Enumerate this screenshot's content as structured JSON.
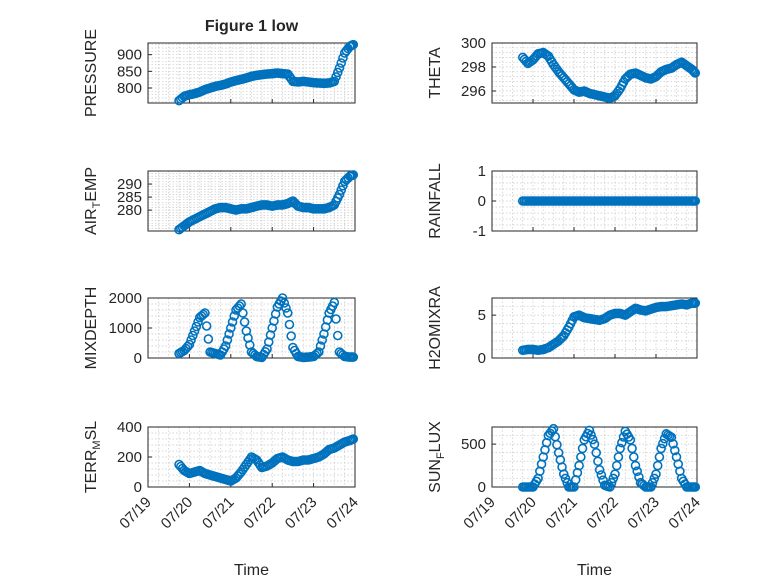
{
  "chart_data": [
    {
      "type": "scatter",
      "title": "Figure 1 low",
      "ylabel": "PRESSURE",
      "ylim": [
        755,
        935
      ],
      "yticks": [
        800,
        850,
        900
      ],
      "xlim": [
        "07/19",
        "07/24"
      ],
      "xticks": [],
      "grid": true,
      "series": [
        {
          "x": [
            "07/19 18:00",
            "07/19 21:00",
            "07/20 00:00",
            "07/20 03:00",
            "07/20 06:00",
            "07/20 09:00",
            "07/20 12:00",
            "07/20 15:00",
            "07/20 18:00",
            "07/20 21:00",
            "07/21 00:00",
            "07/21 03:00",
            "07/21 06:00",
            "07/21 09:00",
            "07/21 12:00",
            "07/21 15:00",
            "07/21 18:00",
            "07/21 21:00",
            "07/22 00:00",
            "07/22 03:00",
            "07/22 06:00",
            "07/22 09:00",
            "07/22 12:00",
            "07/22 15:00",
            "07/22 18:00",
            "07/22 21:00",
            "07/23 00:00",
            "07/23 03:00",
            "07/23 06:00",
            "07/23 09:00",
            "07/23 12:00",
            "07/23 15:00",
            "07/23 18:00",
            "07/23 21:00",
            "07/23 23:00"
          ],
          "y": [
            762,
            775,
            780,
            783,
            788,
            795,
            800,
            805,
            808,
            812,
            818,
            822,
            826,
            830,
            835,
            838,
            840,
            842,
            843,
            845,
            843,
            842,
            820,
            818,
            820,
            818,
            816,
            815,
            814,
            815,
            820,
            860,
            905,
            925,
            930
          ]
        }
      ]
    },
    {
      "type": "scatter",
      "title": "",
      "ylabel": "THETA",
      "ylim": [
        295,
        300
      ],
      "yticks": [
        296,
        298,
        300
      ],
      "xlim": [
        "07/19",
        "07/24"
      ],
      "xticks": [],
      "grid": true,
      "series": [
        {
          "x": [
            "07/19 18:00",
            "07/19 21:00",
            "07/20 00:00",
            "07/20 03:00",
            "07/20 06:00",
            "07/20 09:00",
            "07/20 12:00",
            "07/20 15:00",
            "07/20 18:00",
            "07/20 21:00",
            "07/21 00:00",
            "07/21 03:00",
            "07/21 06:00",
            "07/21 09:00",
            "07/21 12:00",
            "07/21 15:00",
            "07/21 18:00",
            "07/21 21:00",
            "07/22 00:00",
            "07/22 03:00",
            "07/22 06:00",
            "07/22 09:00",
            "07/22 12:00",
            "07/22 15:00",
            "07/22 18:00",
            "07/22 21:00",
            "07/23 00:00",
            "07/23 03:00",
            "07/23 06:00",
            "07/23 09:00",
            "07/23 12:00",
            "07/23 15:00",
            "07/23 18:00",
            "07/23 21:00",
            "07/23 23:00"
          ],
          "y": [
            298.8,
            298.3,
            298.6,
            299.1,
            299.2,
            298.9,
            298.2,
            297.6,
            297.1,
            296.6,
            296.1,
            295.9,
            296.0,
            295.8,
            295.7,
            295.6,
            295.5,
            295.4,
            295.6,
            296.2,
            297.0,
            297.4,
            297.5,
            297.3,
            297.1,
            297.0,
            297.2,
            297.6,
            297.8,
            297.9,
            298.2,
            298.4,
            298.1,
            297.8,
            297.5
          ]
        }
      ]
    },
    {
      "type": "scatter",
      "title": "",
      "ylabel": "AIR_TEMP",
      "ylim": [
        272,
        295
      ],
      "yticks": [
        280,
        285,
        290
      ],
      "xlim": [
        "07/19",
        "07/24"
      ],
      "xticks": [],
      "grid": true,
      "series": [
        {
          "x": [
            "07/19 18:00",
            "07/19 21:00",
            "07/20 00:00",
            "07/20 03:00",
            "07/20 06:00",
            "07/20 09:00",
            "07/20 12:00",
            "07/20 15:00",
            "07/20 18:00",
            "07/20 21:00",
            "07/21 00:00",
            "07/21 03:00",
            "07/21 06:00",
            "07/21 09:00",
            "07/21 12:00",
            "07/21 15:00",
            "07/21 18:00",
            "07/21 21:00",
            "07/22 00:00",
            "07/22 03:00",
            "07/22 06:00",
            "07/22 09:00",
            "07/22 12:00",
            "07/22 15:00",
            "07/22 18:00",
            "07/22 21:00",
            "07/23 00:00",
            "07/23 03:00",
            "07/23 06:00",
            "07/23 09:00",
            "07/23 12:00",
            "07/23 15:00",
            "07/23 18:00",
            "07/23 21:00",
            "07/23 23:00"
          ],
          "y": [
            272.5,
            274.0,
            275.5,
            276.5,
            277.5,
            278.5,
            279.5,
            280.5,
            281.0,
            281.0,
            280.5,
            280.0,
            280.5,
            280.5,
            281.0,
            281.5,
            282.0,
            282.0,
            281.5,
            282.0,
            282.0,
            282.5,
            283.5,
            281.5,
            281.0,
            281.0,
            280.5,
            280.5,
            280.5,
            281.0,
            282.0,
            286.0,
            291.0,
            293.0,
            293.5
          ]
        }
      ]
    },
    {
      "type": "scatter",
      "title": "",
      "ylabel": "RAINFALL",
      "ylim": [
        -1,
        1
      ],
      "yticks": [
        -1,
        0,
        1
      ],
      "xlim": [
        "07/19",
        "07/24"
      ],
      "xticks": [],
      "grid": true,
      "series": [
        {
          "x": [
            "07/19 18:00",
            "07/19 21:00",
            "07/20 00:00",
            "07/20 03:00",
            "07/20 06:00",
            "07/20 09:00",
            "07/20 12:00",
            "07/20 15:00",
            "07/20 18:00",
            "07/20 21:00",
            "07/21 00:00",
            "07/21 03:00",
            "07/21 06:00",
            "07/21 09:00",
            "07/21 12:00",
            "07/21 15:00",
            "07/21 18:00",
            "07/21 21:00",
            "07/22 00:00",
            "07/22 03:00",
            "07/22 06:00",
            "07/22 09:00",
            "07/22 12:00",
            "07/22 15:00",
            "07/22 18:00",
            "07/22 21:00",
            "07/23 00:00",
            "07/23 03:00",
            "07/23 06:00",
            "07/23 09:00",
            "07/23 12:00",
            "07/23 15:00",
            "07/23 18:00",
            "07/23 21:00",
            "07/23 23:00"
          ],
          "y": [
            0,
            0,
            0,
            0,
            0,
            0,
            0,
            0,
            0,
            0,
            0,
            0,
            0,
            0,
            0,
            0,
            0,
            0,
            0,
            0,
            0,
            0,
            0,
            0,
            0,
            0,
            0,
            0,
            0,
            0,
            0,
            0,
            0,
            0,
            0
          ]
        }
      ]
    },
    {
      "type": "scatter",
      "title": "",
      "ylabel": "MIXDEPTH",
      "ylim": [
        0,
        2000
      ],
      "yticks": [
        0,
        1000,
        2000
      ],
      "xlim": [
        "07/19",
        "07/24"
      ],
      "xticks": [],
      "grid": true,
      "series": [
        {
          "x": [
            "07/19 18:00",
            "07/19 21:00",
            "07/20 00:00",
            "07/20 03:00",
            "07/20 06:00",
            "07/20 09:00",
            "07/20 12:00",
            "07/20 15:00",
            "07/20 18:00",
            "07/20 21:00",
            "07/21 00:00",
            "07/21 03:00",
            "07/21 06:00",
            "07/21 09:00",
            "07/21 12:00",
            "07/21 15:00",
            "07/21 18:00",
            "07/21 21:00",
            "07/22 00:00",
            "07/22 03:00",
            "07/22 06:00",
            "07/22 09:00",
            "07/22 12:00",
            "07/22 15:00",
            "07/22 18:00",
            "07/22 21:00",
            "07/23 00:00",
            "07/23 03:00",
            "07/23 06:00",
            "07/23 09:00",
            "07/23 12:00",
            "07/23 15:00",
            "07/23 18:00",
            "07/23 21:00",
            "07/23 23:00"
          ],
          "y": [
            150,
            250,
            450,
            900,
            1350,
            1500,
            200,
            150,
            100,
            400,
            1000,
            1600,
            1800,
            900,
            200,
            50,
            20,
            300,
            1000,
            1700,
            2000,
            1500,
            350,
            50,
            20,
            30,
            50,
            200,
            800,
            1500,
            1850,
            200,
            50,
            30,
            30
          ]
        }
      ]
    },
    {
      "type": "scatter",
      "title": "",
      "ylabel": "H2OMIXRA",
      "ylim": [
        0,
        7
      ],
      "yticks": [
        0,
        5
      ],
      "xlim": [
        "07/19",
        "07/24"
      ],
      "xticks": [],
      "grid": true,
      "series": [
        {
          "x": [
            "07/19 18:00",
            "07/19 21:00",
            "07/20 00:00",
            "07/20 03:00",
            "07/20 06:00",
            "07/20 09:00",
            "07/20 12:00",
            "07/20 15:00",
            "07/20 18:00",
            "07/20 21:00",
            "07/21 00:00",
            "07/21 03:00",
            "07/21 06:00",
            "07/21 09:00",
            "07/21 12:00",
            "07/21 15:00",
            "07/21 18:00",
            "07/21 21:00",
            "07/22 00:00",
            "07/22 03:00",
            "07/22 06:00",
            "07/22 09:00",
            "07/22 12:00",
            "07/22 15:00",
            "07/22 18:00",
            "07/22 21:00",
            "07/23 00:00",
            "07/23 03:00",
            "07/23 06:00",
            "07/23 09:00",
            "07/23 12:00",
            "07/23 15:00",
            "07/23 18:00",
            "07/23 21:00",
            "07/23 23:00"
          ],
          "y": [
            0.9,
            1.0,
            1.0,
            0.9,
            1.0,
            1.2,
            1.6,
            2.0,
            2.6,
            3.6,
            4.8,
            5.0,
            4.7,
            4.6,
            4.5,
            4.4,
            4.6,
            5.0,
            5.2,
            5.2,
            5.0,
            5.4,
            5.8,
            5.6,
            5.5,
            5.7,
            5.9,
            6.0,
            6.0,
            6.1,
            6.2,
            6.3,
            6.2,
            6.4,
            6.4
          ]
        }
      ]
    },
    {
      "type": "scatter",
      "title": "",
      "ylabel": "TERR_MSL",
      "ylim": [
        0,
        400
      ],
      "yticks": [
        0,
        200,
        400
      ],
      "xlim": [
        "07/19",
        "07/24"
      ],
      "xticks": [
        "07/19",
        "07/20",
        "07/21",
        "07/22",
        "07/23",
        "07/24"
      ],
      "xlabel": "Time",
      "grid": true,
      "series": [
        {
          "x": [
            "07/19 18:00",
            "07/19 21:00",
            "07/20 00:00",
            "07/20 03:00",
            "07/20 06:00",
            "07/20 09:00",
            "07/20 12:00",
            "07/20 15:00",
            "07/20 18:00",
            "07/20 21:00",
            "07/21 00:00",
            "07/21 03:00",
            "07/21 06:00",
            "07/21 09:00",
            "07/21 12:00",
            "07/21 15:00",
            "07/21 18:00",
            "07/21 21:00",
            "07/22 00:00",
            "07/22 03:00",
            "07/22 06:00",
            "07/22 09:00",
            "07/22 12:00",
            "07/22 15:00",
            "07/22 18:00",
            "07/22 21:00",
            "07/23 00:00",
            "07/23 03:00",
            "07/23 06:00",
            "07/23 09:00",
            "07/23 12:00",
            "07/23 15:00",
            "07/23 18:00",
            "07/23 21:00",
            "07/23 23:00"
          ],
          "y": [
            150,
            110,
            90,
            100,
            110,
            90,
            80,
            70,
            60,
            50,
            40,
            60,
            100,
            150,
            200,
            180,
            130,
            140,
            160,
            190,
            200,
            180,
            170,
            170,
            180,
            180,
            190,
            200,
            220,
            250,
            260,
            280,
            300,
            310,
            320
          ]
        }
      ]
    },
    {
      "type": "scatter",
      "title": "",
      "ylabel": "SUN_FLUX",
      "ylim": [
        0,
        700
      ],
      "yticks": [
        0,
        500
      ],
      "xlim": [
        "07/19",
        "07/24"
      ],
      "xticks": [
        "07/19",
        "07/20",
        "07/21",
        "07/22",
        "07/23",
        "07/24"
      ],
      "xlabel": "Time",
      "grid": true,
      "series": [
        {
          "x": [
            "07/19 18:00",
            "07/19 21:00",
            "07/20 00:00",
            "07/20 03:00",
            "07/20 06:00",
            "07/20 09:00",
            "07/20 12:00",
            "07/20 15:00",
            "07/20 18:00",
            "07/20 21:00",
            "07/21 00:00",
            "07/21 03:00",
            "07/21 06:00",
            "07/21 09:00",
            "07/21 12:00",
            "07/21 15:00",
            "07/21 18:00",
            "07/21 21:00",
            "07/22 00:00",
            "07/22 03:00",
            "07/22 06:00",
            "07/22 09:00",
            "07/22 12:00",
            "07/22 15:00",
            "07/22 18:00",
            "07/22 21:00",
            "07/23 00:00",
            "07/23 03:00",
            "07/23 06:00",
            "07/23 09:00",
            "07/23 12:00",
            "07/23 15:00",
            "07/23 18:00",
            "07/23 21:00",
            "07/23 23:00"
          ],
          "y": [
            0,
            0,
            0,
            100,
            350,
            600,
            680,
            400,
            150,
            0,
            0,
            250,
            550,
            660,
            500,
            200,
            20,
            0,
            150,
            450,
            650,
            550,
            250,
            50,
            0,
            0,
            150,
            450,
            620,
            580,
            350,
            100,
            0,
            0,
            0
          ]
        }
      ]
    }
  ]
}
